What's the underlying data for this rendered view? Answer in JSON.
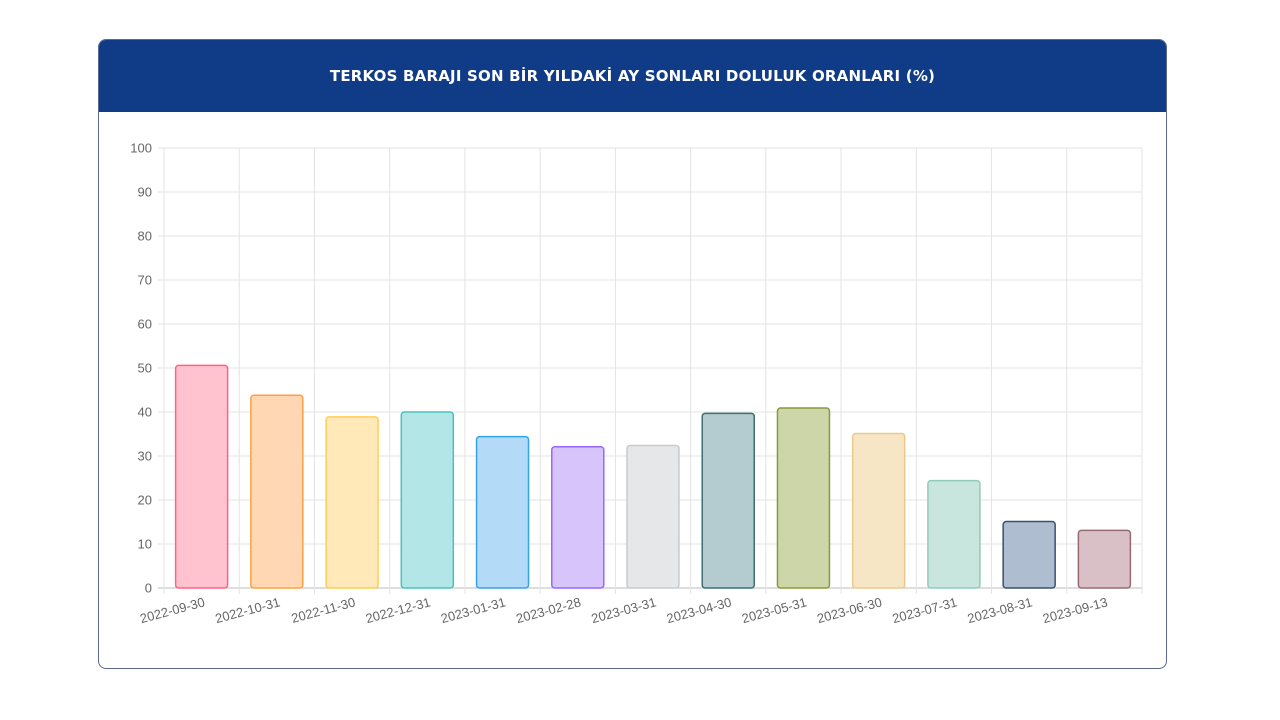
{
  "header": {
    "title": "TERKOS BARAJI SON BİR YILDAKİ AY SONLARI DOLULUK ORANLARI (%)"
  },
  "chart_data": {
    "type": "bar",
    "title": "TERKOS BARAJI SON BİR YILDAKİ AY SONLARI DOLULUK ORANLARI (%)",
    "xlabel": "",
    "ylabel": "",
    "ylim": [
      0,
      100
    ],
    "yticks": [
      0,
      10,
      20,
      30,
      40,
      50,
      60,
      70,
      80,
      90,
      100
    ],
    "grid": true,
    "legend": "none",
    "categories": [
      "2022-09-30",
      "2022-10-31",
      "2022-11-30",
      "2022-12-31",
      "2023-01-31",
      "2023-02-28",
      "2023-03-31",
      "2023-04-30",
      "2023-05-31",
      "2023-06-30",
      "2023-07-31",
      "2023-08-31",
      "2023-09-13"
    ],
    "values": [
      50.6,
      43.8,
      38.9,
      40.0,
      34.4,
      32.1,
      32.4,
      39.7,
      40.9,
      35.1,
      24.4,
      15.1,
      13.1
    ],
    "colors": [
      {
        "fill": "#ffc2ce",
        "stroke": "#ff6384"
      },
      {
        "fill": "#ffd8b3",
        "stroke": "#ff9f40"
      },
      {
        "fill": "#ffe9b8",
        "stroke": "#ffcd56"
      },
      {
        "fill": "#b3e6e6",
        "stroke": "#4bc0c0"
      },
      {
        "fill": "#b3dbf7",
        "stroke": "#36a2eb"
      },
      {
        "fill": "#d7c4fa",
        "stroke": "#9966ff"
      },
      {
        "fill": "#e6e7e9",
        "stroke": "#c9cbcf"
      },
      {
        "fill": "#b4cccf",
        "stroke": "#3d6e72"
      },
      {
        "fill": "#cdd6a9",
        "stroke": "#8a9a3a"
      },
      {
        "fill": "#f7e6c5",
        "stroke": "#ecc98a"
      },
      {
        "fill": "#c8e6dd",
        "stroke": "#8fccb8"
      },
      {
        "fill": "#aebdd0",
        "stroke": "#3b4f6e"
      },
      {
        "fill": "#d8c0c6",
        "stroke": "#9a6a74"
      }
    ]
  }
}
